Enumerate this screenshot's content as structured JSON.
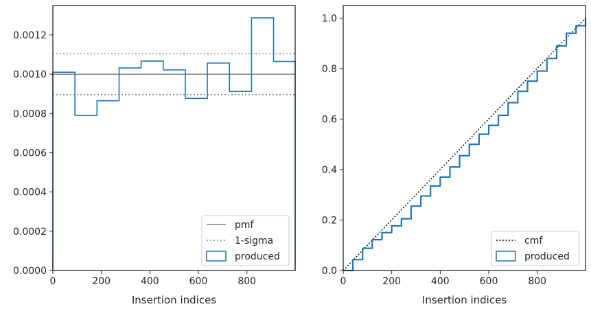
{
  "chart_data": [
    {
      "type": "step-histogram",
      "xlabel": "Insertion indices",
      "xlim": [
        0,
        999
      ],
      "ylim": [
        0,
        0.00135
      ],
      "xticks": [
        0,
        200,
        400,
        600,
        800
      ],
      "yticks": [
        0.0,
        0.0002,
        0.0004,
        0.0006,
        0.0008,
        0.001,
        0.0012
      ],
      "xtick_labels": [
        "0",
        "200",
        "400",
        "600",
        "800"
      ],
      "ytick_labels": [
        "0.0000",
        "0.0002",
        "0.0004",
        "0.0006",
        "0.0008",
        "0.0010",
        "0.0012"
      ],
      "bin_edges": [
        0,
        91,
        182,
        273,
        364,
        455,
        546,
        637,
        728,
        819,
        910,
        999
      ],
      "produced_values": [
        0.00101,
        0.00079,
        0.000865,
        0.001032,
        0.001067,
        0.001022,
        0.000877,
        0.001057,
        0.000912,
        0.001287,
        0.001065
      ],
      "pmf": 0.001,
      "sigma_band": [
        0.000896,
        0.001104
      ],
      "grid": false,
      "legend_position": "lower-right",
      "legend": [
        "pmf",
        "1-sigma",
        "produced"
      ],
      "colors": {
        "pmf": "#808080",
        "sigma": "#808080",
        "produced": "#1f77b4"
      }
    },
    {
      "type": "step-line",
      "xlabel": "Insertion indices",
      "xlim": [
        0,
        999
      ],
      "ylim": [
        0,
        1.05
      ],
      "xticks": [
        0,
        200,
        400,
        600,
        800
      ],
      "yticks": [
        0.0,
        0.2,
        0.4,
        0.6,
        0.8,
        1.0
      ],
      "xtick_labels": [
        "0",
        "200",
        "400",
        "600",
        "800"
      ],
      "ytick_labels": [
        "0.0",
        "0.2",
        "0.4",
        "0.6",
        "0.8",
        "1.0"
      ],
      "cmf": {
        "x": [
          0,
          999
        ],
        "y": [
          0,
          1.0
        ]
      },
      "produced": {
        "x": [
          0,
          40,
          80,
          120,
          160,
          200,
          240,
          280,
          320,
          360,
          400,
          440,
          480,
          520,
          560,
          600,
          640,
          680,
          720,
          760,
          800,
          840,
          880,
          920,
          960,
          999
        ],
        "y": [
          0,
          0.043,
          0.088,
          0.122,
          0.15,
          0.177,
          0.205,
          0.255,
          0.295,
          0.335,
          0.37,
          0.41,
          0.455,
          0.5,
          0.54,
          0.575,
          0.615,
          0.665,
          0.71,
          0.75,
          0.79,
          0.84,
          0.89,
          0.94,
          0.97,
          1.0
        ]
      },
      "grid": false,
      "legend_position": "lower-right",
      "legend": [
        "cmf",
        "produced"
      ],
      "colors": {
        "cmf": "#000000",
        "produced": "#1f77b4"
      }
    }
  ]
}
